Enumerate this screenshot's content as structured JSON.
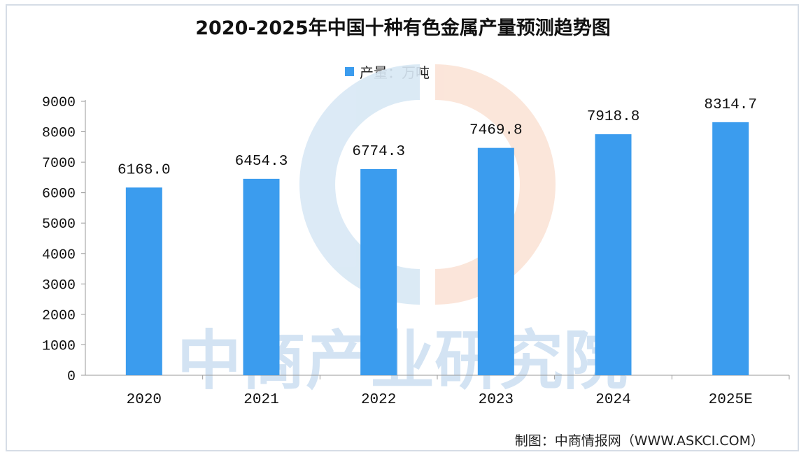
{
  "title": "2020-2025年中国十种有色金属产量预测趋势图",
  "source": "制图：中商情报网（WWW.ASKCI.COM）",
  "watermark": "中商产业研究院",
  "colors": {
    "bar": "#3b9cee",
    "axis": "#999999",
    "text": "#111111"
  },
  "chart_data": {
    "type": "bar",
    "title": "2020-2025年中国十种有色金属产量预测趋势图",
    "categories": [
      "2020",
      "2021",
      "2022",
      "2023",
      "2024",
      "2025E"
    ],
    "series": [
      {
        "name": "产量：万吨",
        "values": [
          6168.0,
          6454.3,
          6774.3,
          7469.8,
          7918.8,
          8314.7
        ]
      }
    ],
    "data_labels": [
      "6168.0",
      "6454.3",
      "6774.3",
      "7469.8",
      "7918.8",
      "8314.7"
    ],
    "yticks": [
      0,
      1000,
      2000,
      3000,
      4000,
      5000,
      6000,
      7000,
      8000,
      9000
    ],
    "ylim": [
      0,
      9000
    ],
    "xlabel": "",
    "ylabel": "",
    "grid": false,
    "legend": "top-center"
  }
}
